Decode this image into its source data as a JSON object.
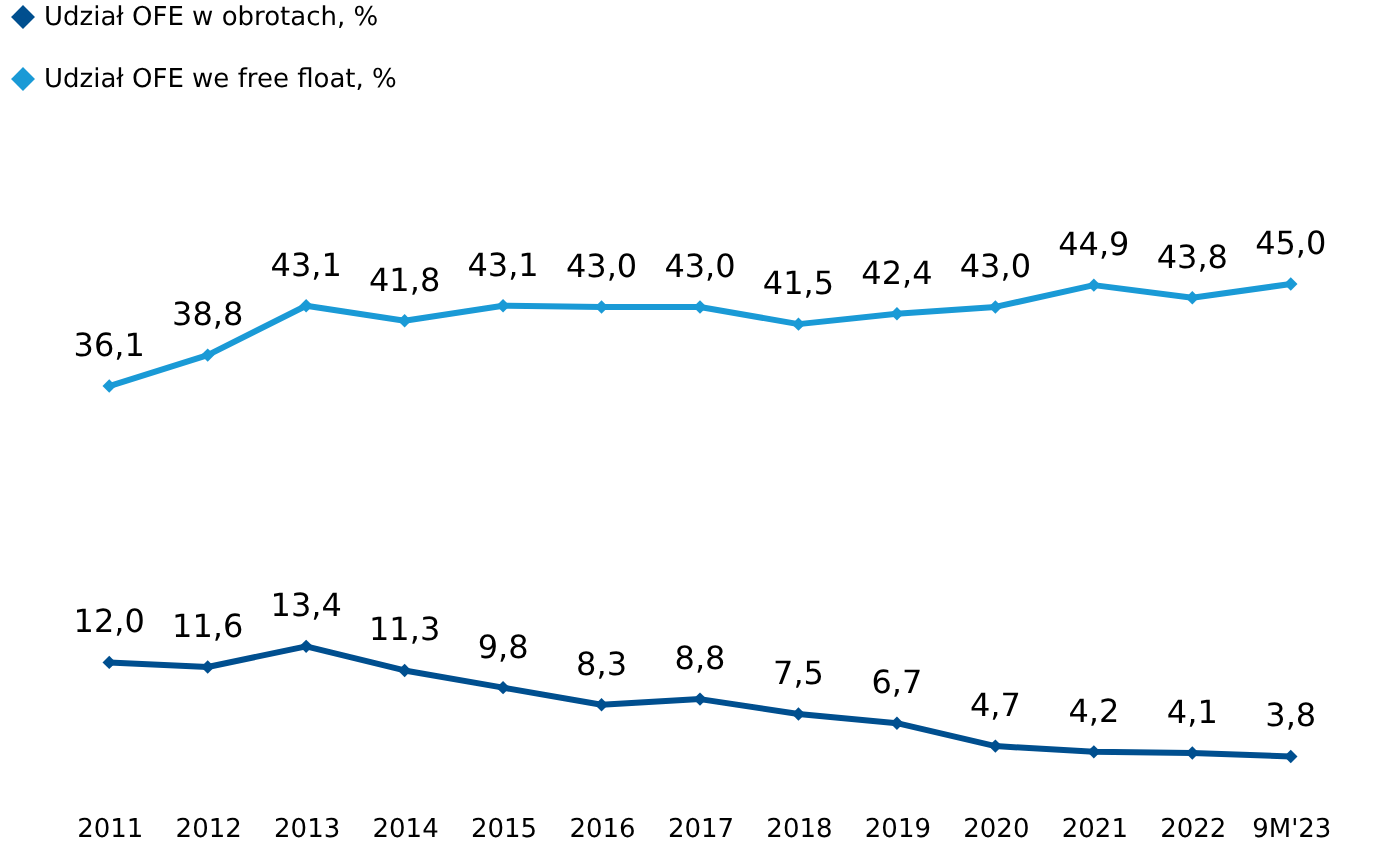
{
  "chart_data": {
    "type": "line",
    "categories": [
      "2011",
      "2012",
      "2013",
      "2014",
      "2015",
      "2016",
      "2017",
      "2018",
      "2019",
      "2020",
      "2021",
      "2022",
      "9M'23"
    ],
    "series": [
      {
        "name": "Udział OFE w obrotach, %",
        "color": "#004f8f",
        "values": [
          12.0,
          11.6,
          13.4,
          11.3,
          9.8,
          8.3,
          8.8,
          7.5,
          6.7,
          4.7,
          4.2,
          4.1,
          3.8
        ],
        "value_labels": [
          "12,0",
          "11,6",
          "13,4",
          "11,3",
          "9,8",
          "8,3",
          "8,8",
          "7,5",
          "6,7",
          "4,7",
          "4,2",
          "4,1",
          "3,8"
        ]
      },
      {
        "name": "Udział OFE we free float, %",
        "color": "#1a9ad6",
        "values": [
          36.1,
          38.8,
          43.1,
          41.8,
          43.1,
          43.0,
          43.0,
          41.5,
          42.4,
          43.0,
          44.9,
          43.8,
          45.0
        ],
        "value_labels": [
          "36,1",
          "38,8",
          "43,1",
          "41,8",
          "43,1",
          "43,0",
          "43,0",
          "41,5",
          "42,4",
          "43,0",
          "44,9",
          "43,8",
          "45,0"
        ]
      }
    ],
    "tick_labels": "x",
    "grid": false,
    "legend": "top left",
    "marker": "diamond",
    "line_style": "solid"
  }
}
